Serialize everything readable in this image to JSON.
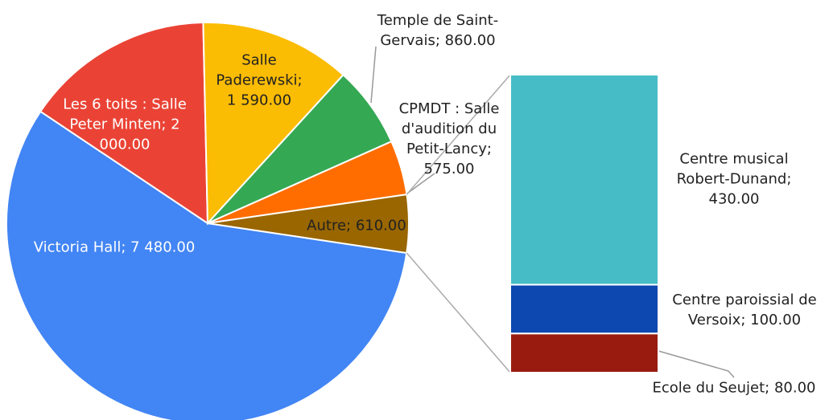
{
  "chart_data": {
    "type": "pie",
    "values": [
      7480,
      2000,
      1590,
      860,
      575,
      610
    ],
    "value_labels": [
      "Victoria Hall; 7 480.00",
      "Les 6 toits : Salle Peter Minten; 2 000.00",
      "Salle Paderewski; 1 590.00",
      "Temple de Saint-Gervais; 860.00",
      "CPMDT : Salle d'audition du Petit-Lancy; 575.00",
      "Autre; 610.00"
    ],
    "colors": [
      "#4285f4",
      "#ea4335",
      "#fbbc04",
      "#34a853",
      "#ff6d01",
      "#996600"
    ],
    "bar": {
      "type": "bar",
      "values": [
        430,
        100,
        80
      ],
      "value_labels": [
        "Centre musical Robert-Dunand; 430.00",
        "Centre paroissial de Versoix; 100.00",
        "Ecole du Seujet; 80.00"
      ],
      "colors": [
        "#46bdc6",
        "#0d47b0",
        "#991b10"
      ]
    }
  }
}
